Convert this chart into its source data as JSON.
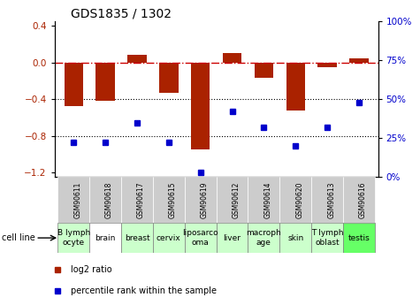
{
  "title": "GDS1835 / 1302",
  "samples": [
    "GSM90611",
    "GSM90618",
    "GSM90617",
    "GSM90615",
    "GSM90619",
    "GSM90612",
    "GSM90614",
    "GSM90620",
    "GSM90613",
    "GSM90616"
  ],
  "cell_lines": [
    "B lymph\nocyte",
    "brain",
    "breast",
    "cervix",
    "liposarco\noma",
    "liver",
    "macroph\nage",
    "skin",
    "T lymph\noblast",
    "testis"
  ],
  "cell_line_colors": [
    "#ccffcc",
    "#ffffff",
    "#ccffcc",
    "#ccffcc",
    "#ccffcc",
    "#ccffcc",
    "#ccffcc",
    "#ccffcc",
    "#ccffcc",
    "#66ff66"
  ],
  "log2_ratio": [
    -0.48,
    -0.42,
    0.08,
    -0.33,
    -0.95,
    0.1,
    -0.17,
    -0.52,
    -0.05,
    0.05
  ],
  "percentile_rank": [
    22,
    22,
    35,
    22,
    3,
    42,
    32,
    20,
    32,
    48
  ],
  "ylim_left": [
    -1.25,
    0.45
  ],
  "ylim_right": [
    0,
    100
  ],
  "bar_color": "#aa2200",
  "dot_color": "#0000cc",
  "hline_color": "#cc0000",
  "grid_color": "#000000",
  "bg_color": "#ffffff",
  "sample_box_color": "#cccccc",
  "legend_red": "log2 ratio",
  "legend_blue": "percentile rank within the sample",
  "title_fontsize": 10,
  "tick_fontsize": 7.5,
  "label_fontsize": 6.5,
  "cell_fontsize": 6.5
}
